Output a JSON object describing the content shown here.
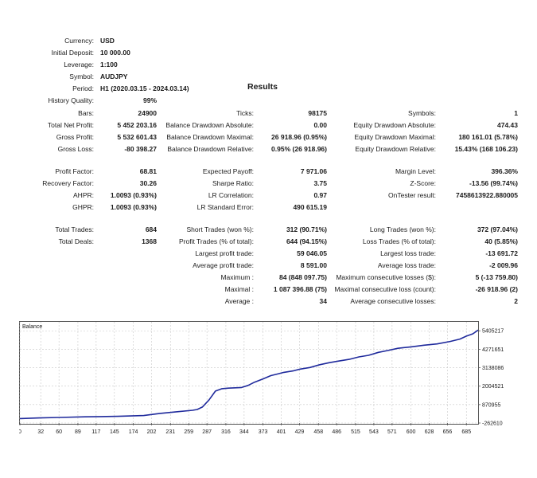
{
  "info": {
    "currency": {
      "label": "Currency:",
      "value": "USD"
    },
    "initial_deposit": {
      "label": "Initial Deposit:",
      "value": "10 000.00"
    },
    "leverage": {
      "label": "Leverage:",
      "value": "1:100"
    },
    "symbol": {
      "label": "Symbol:",
      "value": "AUDJPY"
    },
    "period": {
      "label": "Period:",
      "value": "H1 (2020.03.15 - 2024.03.14)"
    }
  },
  "results_title": "Results",
  "history_quality": {
    "label": "History Quality:",
    "value": "99%"
  },
  "stats": {
    "bars": {
      "label": "Bars:",
      "value": "24900"
    },
    "ticks": {
      "label": "Ticks:",
      "value": "98175"
    },
    "symbols": {
      "label": "Symbols:",
      "value": "1"
    },
    "total_net_profit": {
      "label": "Total Net Profit:",
      "value": "5 452 203.16"
    },
    "balance_dd_abs": {
      "label": "Balance Drawdown Absolute:",
      "value": "0.00"
    },
    "equity_dd_abs": {
      "label": "Equity Drawdown Absolute:",
      "value": "474.43"
    },
    "gross_profit": {
      "label": "Gross Profit:",
      "value": "5 532 601.43"
    },
    "balance_dd_max": {
      "label": "Balance Drawdown Maximal:",
      "value": "26 918.96 (0.95%)"
    },
    "equity_dd_max": {
      "label": "Equity Drawdown Maximal:",
      "value": "180 161.01 (5.78%)"
    },
    "gross_loss": {
      "label": "Gross Loss:",
      "value": "-80 398.27"
    },
    "balance_dd_rel": {
      "label": "Balance Drawdown Relative:",
      "value": "0.95% (26 918.96)"
    },
    "equity_dd_rel": {
      "label": "Equity Drawdown Relative:",
      "value": "15.43% (168 106.23)"
    },
    "profit_factor": {
      "label": "Profit Factor:",
      "value": "68.81"
    },
    "expected_payoff": {
      "label": "Expected Payoff:",
      "value": "7 971.06"
    },
    "margin_level": {
      "label": "Margin Level:",
      "value": "396.36%"
    },
    "recovery_factor": {
      "label": "Recovery Factor:",
      "value": "30.26"
    },
    "sharpe_ratio": {
      "label": "Sharpe Ratio:",
      "value": "3.75"
    },
    "z_score": {
      "label": "Z-Score:",
      "value": "-13.56 (99.74%)"
    },
    "ahpr": {
      "label": "AHPR:",
      "value": "1.0093 (0.93%)"
    },
    "lr_correlation": {
      "label": "LR Correlation:",
      "value": "0.97"
    },
    "ontester": {
      "label": "OnTester result:",
      "value": "7458613922.880005"
    },
    "ghpr": {
      "label": "GHPR:",
      "value": "1.0093 (0.93%)"
    },
    "lr_std_error": {
      "label": "LR Standard Error:",
      "value": "490 615.19"
    },
    "total_trades": {
      "label": "Total Trades:",
      "value": "684"
    },
    "short_trades": {
      "label": "Short Trades (won %):",
      "value": "312 (90.71%)"
    },
    "long_trades": {
      "label": "Long Trades (won %):",
      "value": "372 (97.04%)"
    },
    "total_deals": {
      "label": "Total Deals:",
      "value": "1368"
    },
    "profit_trades": {
      "label": "Profit Trades (% of total):",
      "value": "644 (94.15%)"
    },
    "loss_trades": {
      "label": "Loss Trades (% of total):",
      "value": "40 (5.85%)"
    },
    "largest_profit": {
      "label": "Largest profit trade:",
      "value": "59 046.05"
    },
    "largest_loss": {
      "label": "Largest loss trade:",
      "value": "-13 691.72"
    },
    "avg_profit": {
      "label": "Average profit trade:",
      "value": "8 591.00"
    },
    "avg_loss": {
      "label": "Average loss trade:",
      "value": "-2 009.96"
    },
    "max_consec_wins": {
      "label": "Maximum :",
      "value": "84 (848 097.75)"
    },
    "max_consec_losses": {
      "label": "Maximum consecutive losses ($):",
      "value": "5 (-13 759.80)"
    },
    "maximal_consec_profit": {
      "label": "Maximal :",
      "value": "1 087 396.88 (75)"
    },
    "maximal_consec_loss": {
      "label": "Maximal consecutive loss (count):",
      "value": "-26 918.96 (2)"
    },
    "avg_consec_wins": {
      "label": "Average :",
      "value": "34"
    },
    "avg_consec_losses": {
      "label": "Average consecutive losses:",
      "value": "2"
    }
  },
  "chart_data": {
    "type": "line",
    "title": "Balance",
    "series_color": "#1f2a9c",
    "xlim": [
      0,
      703
    ],
    "ylim": [
      -262610,
      5956000
    ],
    "x_ticks": [
      0,
      32,
      60,
      89,
      117,
      145,
      174,
      202,
      231,
      259,
      287,
      316,
      344,
      373,
      401,
      429,
      458,
      486,
      515,
      543,
      571,
      600,
      628,
      656,
      685
    ],
    "y_ticks": [
      5405217,
      4271651,
      3138086,
      2004521,
      870955,
      -262610
    ],
    "series": [
      {
        "x": [
          0,
          30,
          60,
          100,
          150,
          190,
          215,
          240,
          265,
          272,
          280,
          290,
          300,
          310,
          320,
          330,
          340,
          350,
          360,
          373,
          385,
          395,
          405,
          420,
          430,
          445,
          460,
          475,
          490,
          505,
          520,
          535,
          550,
          565,
          580,
          600,
          620,
          640,
          660,
          675,
          685,
          695,
          703
        ],
        "y": [
          10000,
          50000,
          80000,
          120000,
          150000,
          200000,
          330000,
          430000,
          520000,
          570000,
          720000,
          1150000,
          1700000,
          1850000,
          1880000,
          1900000,
          1920000,
          2050000,
          2250000,
          2450000,
          2650000,
          2750000,
          2850000,
          2950000,
          3050000,
          3150000,
          3320000,
          3450000,
          3550000,
          3650000,
          3800000,
          3900000,
          4080000,
          4200000,
          4330000,
          4420000,
          4520000,
          4600000,
          4750000,
          4900000,
          5080000,
          5220000,
          5452213
        ]
      }
    ]
  }
}
